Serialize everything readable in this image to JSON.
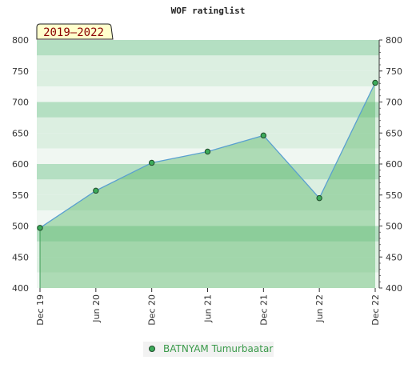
{
  "chart_data": {
    "type": "area",
    "title": "WOF ratinglist",
    "period_badge": "2019–2022",
    "x": [
      "Dec 19",
      "Jun 20",
      "Dec 20",
      "Jun 21",
      "Dec 21",
      "Jun 22",
      "Dec 22"
    ],
    "series": [
      {
        "name": "BATNYAM Tumurbaatar",
        "values": [
          497,
          557,
          602,
          620,
          646,
          545,
          731
        ]
      }
    ],
    "ylim": [
      400,
      800
    ],
    "yticks": [
      400,
      450,
      500,
      550,
      600,
      650,
      700,
      750,
      800
    ],
    "grid": "horizontal bands",
    "legend_position": "bottom-center",
    "colors": {
      "line": "#5aa0d0",
      "marker": "#3cab5a",
      "fill": "#5cb86a",
      "band_light": "#f0f7f2",
      "band_mid": "#dcefe1",
      "band_dark": "#b4dfc2",
      "badge_bg": "#ffffcc",
      "badge_text": "#8b0000",
      "legend_text": "#3a9a4a"
    }
  }
}
